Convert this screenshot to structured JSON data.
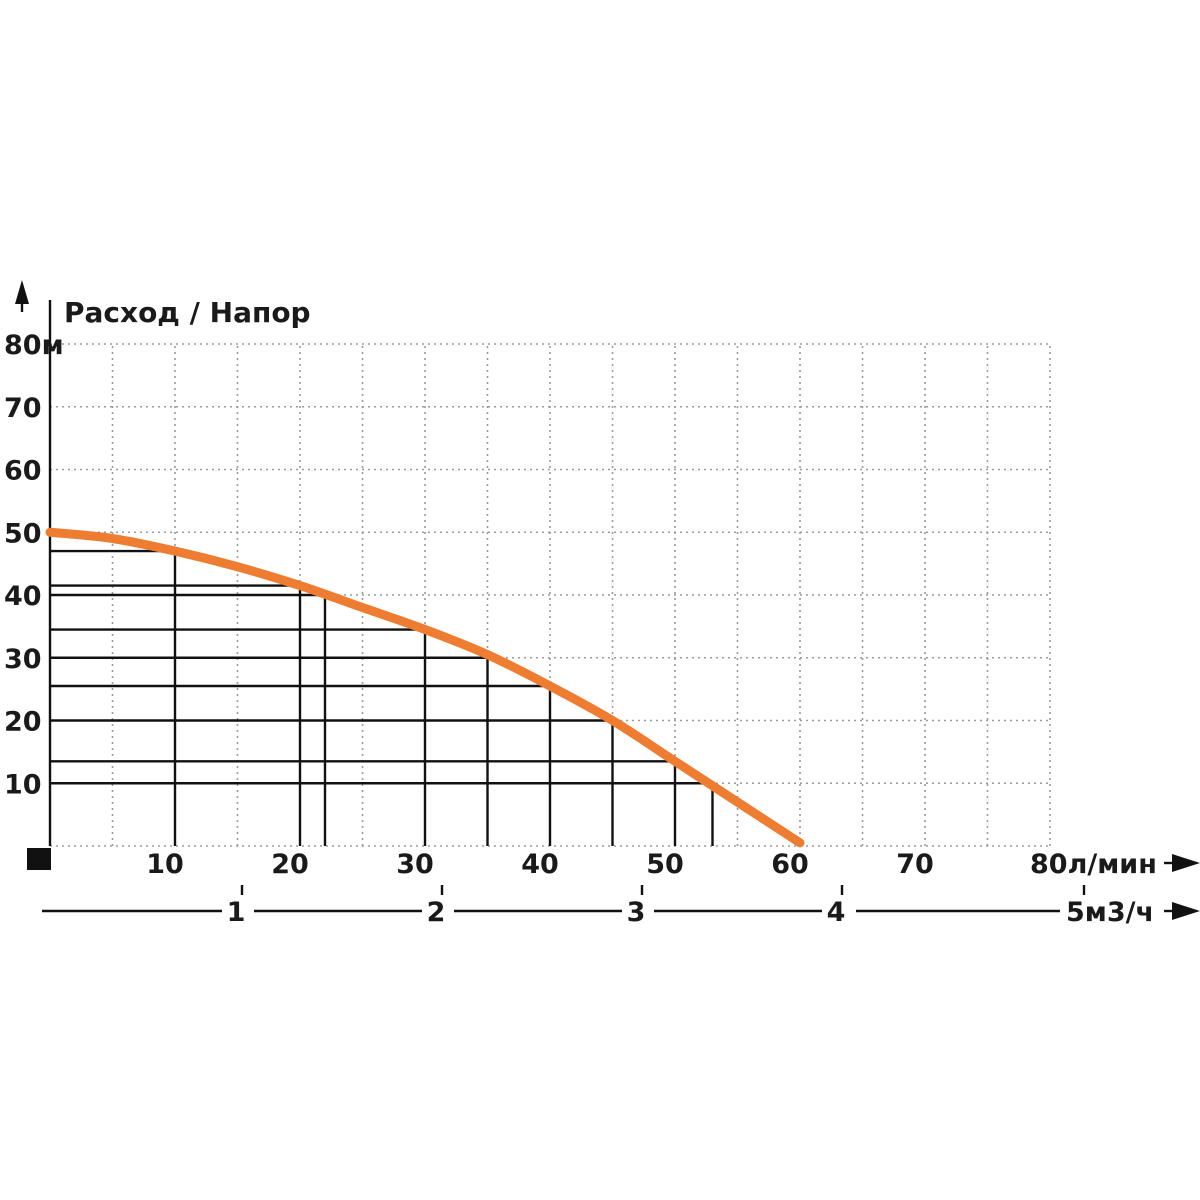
{
  "chart_data": {
    "type": "line",
    "title": "Расход / Напор",
    "y_axis": {
      "range": [
        0,
        80
      ],
      "ticks": [
        {
          "value": 10,
          "label": "10"
        },
        {
          "value": 20,
          "label": "20"
        },
        {
          "value": 30,
          "label": "30"
        },
        {
          "value": 40,
          "label": "40"
        },
        {
          "value": 50,
          "label": "50"
        },
        {
          "value": 60,
          "label": "60"
        },
        {
          "value": 70,
          "label": "70"
        },
        {
          "value": 80,
          "label": "80м"
        }
      ]
    },
    "x_axis": {
      "range": [
        0,
        80
      ],
      "ticks": [
        {
          "value": 10,
          "label": "10"
        },
        {
          "value": 20,
          "label": "20"
        },
        {
          "value": 30,
          "label": "30"
        },
        {
          "value": 40,
          "label": "40"
        },
        {
          "value": 50,
          "label": "50"
        },
        {
          "value": 60,
          "label": "60"
        },
        {
          "value": 70,
          "label": "70"
        },
        {
          "value": 80,
          "label": "80л/мин"
        }
      ]
    },
    "x_axis_secondary": {
      "range": [
        0,
        5
      ],
      "ticks": [
        {
          "value": 1,
          "label": "1"
        },
        {
          "value": 2,
          "label": "2"
        },
        {
          "value": 3,
          "label": "3"
        },
        {
          "value": 4,
          "label": "4"
        },
        {
          "value": 5,
          "label": "5м3/ч"
        }
      ]
    },
    "grid": "dotted",
    "series": [
      {
        "color": "#ee7d31",
        "x": [
          0,
          5,
          10,
          15,
          20,
          25,
          30,
          35,
          40,
          45,
          50,
          55,
          60
        ],
        "y": [
          50,
          49,
          47,
          44.5,
          41.5,
          38,
          34.5,
          30.5,
          25.5,
          20,
          13.5,
          7,
          0.5
        ]
      }
    ],
    "reference_points": [
      {
        "x": 10,
        "y": 47
      },
      {
        "x": 20,
        "y": 41.5
      },
      {
        "x": 30,
        "y": 34.5
      },
      {
        "x": 40,
        "y": 25.5
      },
      {
        "x": 50,
        "y": 13.5
      },
      {
        "x": 22,
        "y": 40
      },
      {
        "x": 35,
        "y": 30
      },
      {
        "x": 45,
        "y": 20
      },
      {
        "x": 53,
        "y": 10
      }
    ]
  }
}
